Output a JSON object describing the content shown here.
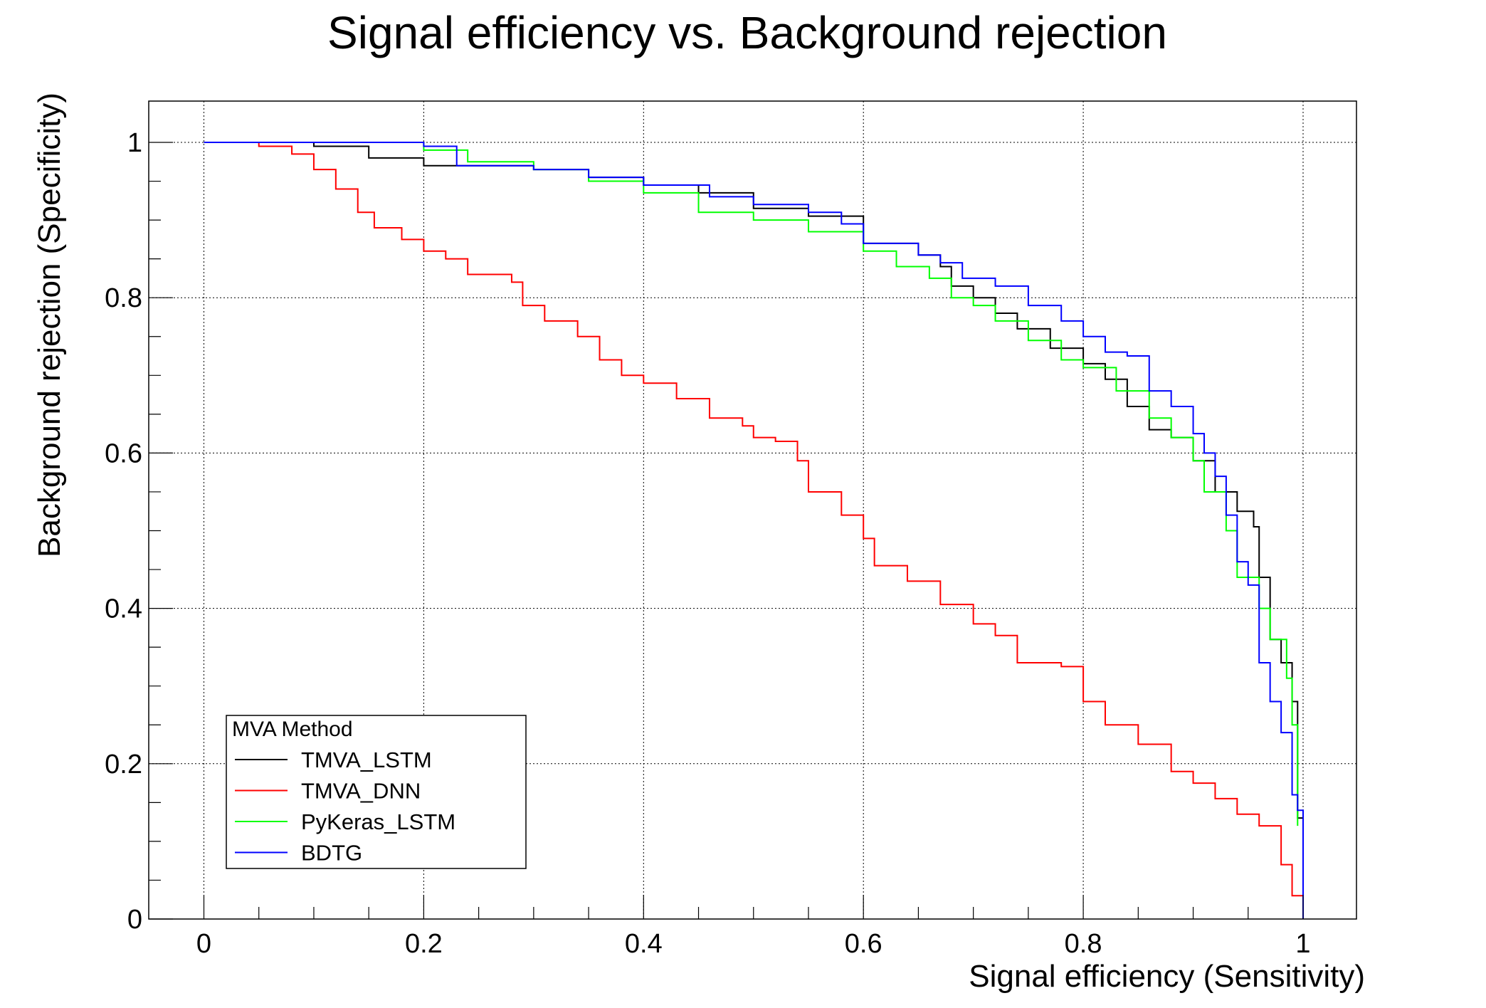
{
  "chart_data": {
    "type": "line",
    "title": "Signal efficiency vs. Background rejection",
    "xlabel": "Signal efficiency (Sensitivity)",
    "ylabel": "Background rejection (Specificity)",
    "xlim": [
      -0.05,
      1.05
    ],
    "ylim": [
      0,
      1.05
    ],
    "xticks": [
      "0",
      "0.2",
      "0.4",
      "0.6",
      "0.8",
      "1"
    ],
    "yticks": [
      "0",
      "0.2",
      "0.4",
      "0.6",
      "0.8",
      "1"
    ],
    "grid": true,
    "legend": {
      "title": "MVA Method",
      "placement": "bottom-left"
    },
    "series": [
      {
        "name": "TMVA_LSTM",
        "color": "#000000",
        "x": [
          0,
          0.1,
          0.15,
          0.2,
          0.26,
          0.3,
          0.35,
          0.4,
          0.45,
          0.5,
          0.55,
          0.6,
          0.65,
          0.67,
          0.68,
          0.7,
          0.72,
          0.74,
          0.77,
          0.8,
          0.82,
          0.84,
          0.86,
          0.88,
          0.9,
          0.92,
          0.94,
          0.955,
          0.96,
          0.97,
          0.98,
          0.99,
          0.995,
          1.0
        ],
        "y": [
          1,
          0.995,
          0.98,
          0.97,
          0.97,
          0.965,
          0.955,
          0.945,
          0.935,
          0.915,
          0.905,
          0.87,
          0.855,
          0.84,
          0.815,
          0.8,
          0.78,
          0.76,
          0.735,
          0.715,
          0.695,
          0.66,
          0.63,
          0.62,
          0.59,
          0.55,
          0.525,
          0.505,
          0.44,
          0.36,
          0.33,
          0.28,
          0.13,
          0.13
        ]
      },
      {
        "name": "TMVA_DNN",
        "color": "#ff0000",
        "x": [
          0,
          0.05,
          0.08,
          0.1,
          0.12,
          0.14,
          0.155,
          0.18,
          0.2,
          0.22,
          0.24,
          0.28,
          0.29,
          0.31,
          0.34,
          0.36,
          0.38,
          0.4,
          0.43,
          0.46,
          0.49,
          0.5,
          0.52,
          0.54,
          0.55,
          0.58,
          0.6,
          0.61,
          0.64,
          0.67,
          0.7,
          0.72,
          0.74,
          0.78,
          0.8,
          0.82,
          0.85,
          0.88,
          0.9,
          0.92,
          0.94,
          0.96,
          0.98,
          0.99,
          1.0
        ],
        "y": [
          1,
          0.995,
          0.985,
          0.965,
          0.94,
          0.91,
          0.89,
          0.875,
          0.86,
          0.85,
          0.83,
          0.82,
          0.79,
          0.77,
          0.75,
          0.72,
          0.7,
          0.69,
          0.67,
          0.645,
          0.635,
          0.62,
          0.615,
          0.59,
          0.55,
          0.52,
          0.49,
          0.455,
          0.435,
          0.405,
          0.38,
          0.365,
          0.33,
          0.325,
          0.28,
          0.25,
          0.225,
          0.19,
          0.175,
          0.155,
          0.135,
          0.12,
          0.07,
          0.03,
          0.0
        ]
      },
      {
        "name": "PyKeras_LSTM",
        "color": "#00ff00",
        "x": [
          0,
          0.2,
          0.24,
          0.3,
          0.35,
          0.4,
          0.45,
          0.5,
          0.55,
          0.6,
          0.63,
          0.66,
          0.68,
          0.7,
          0.72,
          0.75,
          0.78,
          0.8,
          0.83,
          0.86,
          0.88,
          0.9,
          0.91,
          0.93,
          0.94,
          0.96,
          0.97,
          0.985,
          0.99,
          0.995
        ],
        "y": [
          1,
          0.99,
          0.975,
          0.965,
          0.95,
          0.935,
          0.91,
          0.9,
          0.885,
          0.86,
          0.84,
          0.825,
          0.8,
          0.79,
          0.77,
          0.745,
          0.72,
          0.71,
          0.68,
          0.645,
          0.62,
          0.59,
          0.55,
          0.5,
          0.44,
          0.4,
          0.36,
          0.31,
          0.25,
          0.12
        ]
      },
      {
        "name": "BDTG",
        "color": "#0000ff",
        "x": [
          0,
          0.2,
          0.23,
          0.3,
          0.35,
          0.4,
          0.46,
          0.5,
          0.55,
          0.58,
          0.6,
          0.65,
          0.67,
          0.69,
          0.72,
          0.75,
          0.78,
          0.8,
          0.82,
          0.84,
          0.86,
          0.88,
          0.9,
          0.91,
          0.92,
          0.93,
          0.94,
          0.95,
          0.96,
          0.97,
          0.98,
          0.99,
          0.995,
          1.0
        ],
        "y": [
          1,
          0.995,
          0.97,
          0.965,
          0.955,
          0.945,
          0.93,
          0.92,
          0.91,
          0.895,
          0.87,
          0.855,
          0.845,
          0.825,
          0.815,
          0.79,
          0.77,
          0.75,
          0.73,
          0.725,
          0.68,
          0.66,
          0.625,
          0.6,
          0.57,
          0.52,
          0.46,
          0.43,
          0.33,
          0.28,
          0.24,
          0.16,
          0.14,
          0.0
        ]
      }
    ]
  }
}
